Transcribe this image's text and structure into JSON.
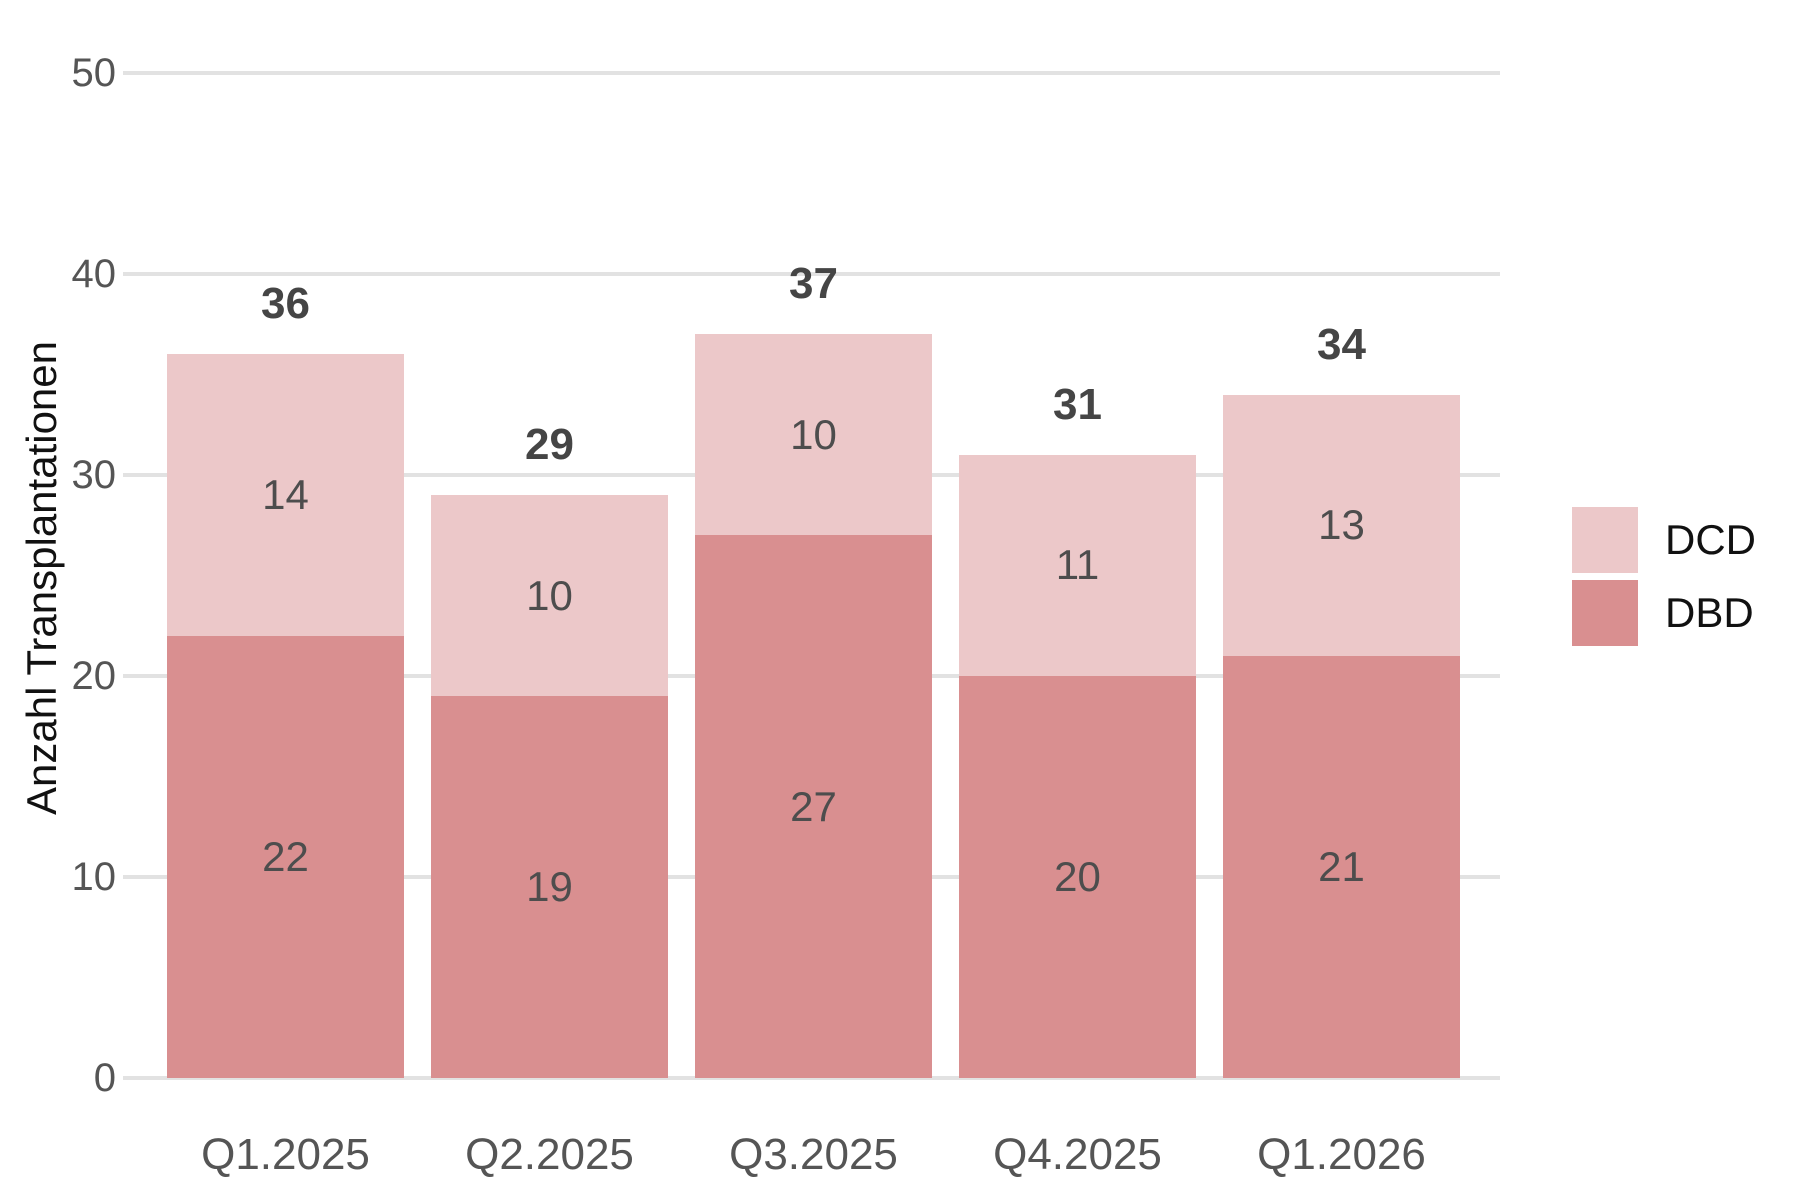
{
  "chart_data": {
    "type": "bar",
    "stacked": true,
    "title": "",
    "xlabel": "",
    "ylabel": "Anzahl Transplantationen",
    "categories": [
      "Q1.2025",
      "Q2.2025",
      "Q3.2025",
      "Q4.2025",
      "Q1.2026"
    ],
    "series": [
      {
        "name": "DBD",
        "color": "#d98f90",
        "values": [
          22,
          19,
          27,
          20,
          21
        ]
      },
      {
        "name": "DCD",
        "color": "#ecc8c9",
        "values": [
          14,
          10,
          10,
          11,
          13
        ]
      }
    ],
    "totals": [
      36,
      29,
      37,
      31,
      34
    ],
    "ylim": [
      0,
      50
    ],
    "yticks": [
      0,
      10,
      20,
      30,
      40,
      50
    ],
    "grid": "horizontal",
    "legend_position": "right",
    "legend": [
      {
        "label": "DCD",
        "color": "#ecc8c9"
      },
      {
        "label": "DBD",
        "color": "#d98f90"
      }
    ]
  },
  "colors": {
    "background": "#ffffff",
    "gridline": "#e2e2e2",
    "tick_label": "#555555",
    "x_label": "#555555",
    "segment_label": "#4d4d4d",
    "total_label": "#454545",
    "axis_title": "#111111",
    "legend_text": "#111111"
  }
}
